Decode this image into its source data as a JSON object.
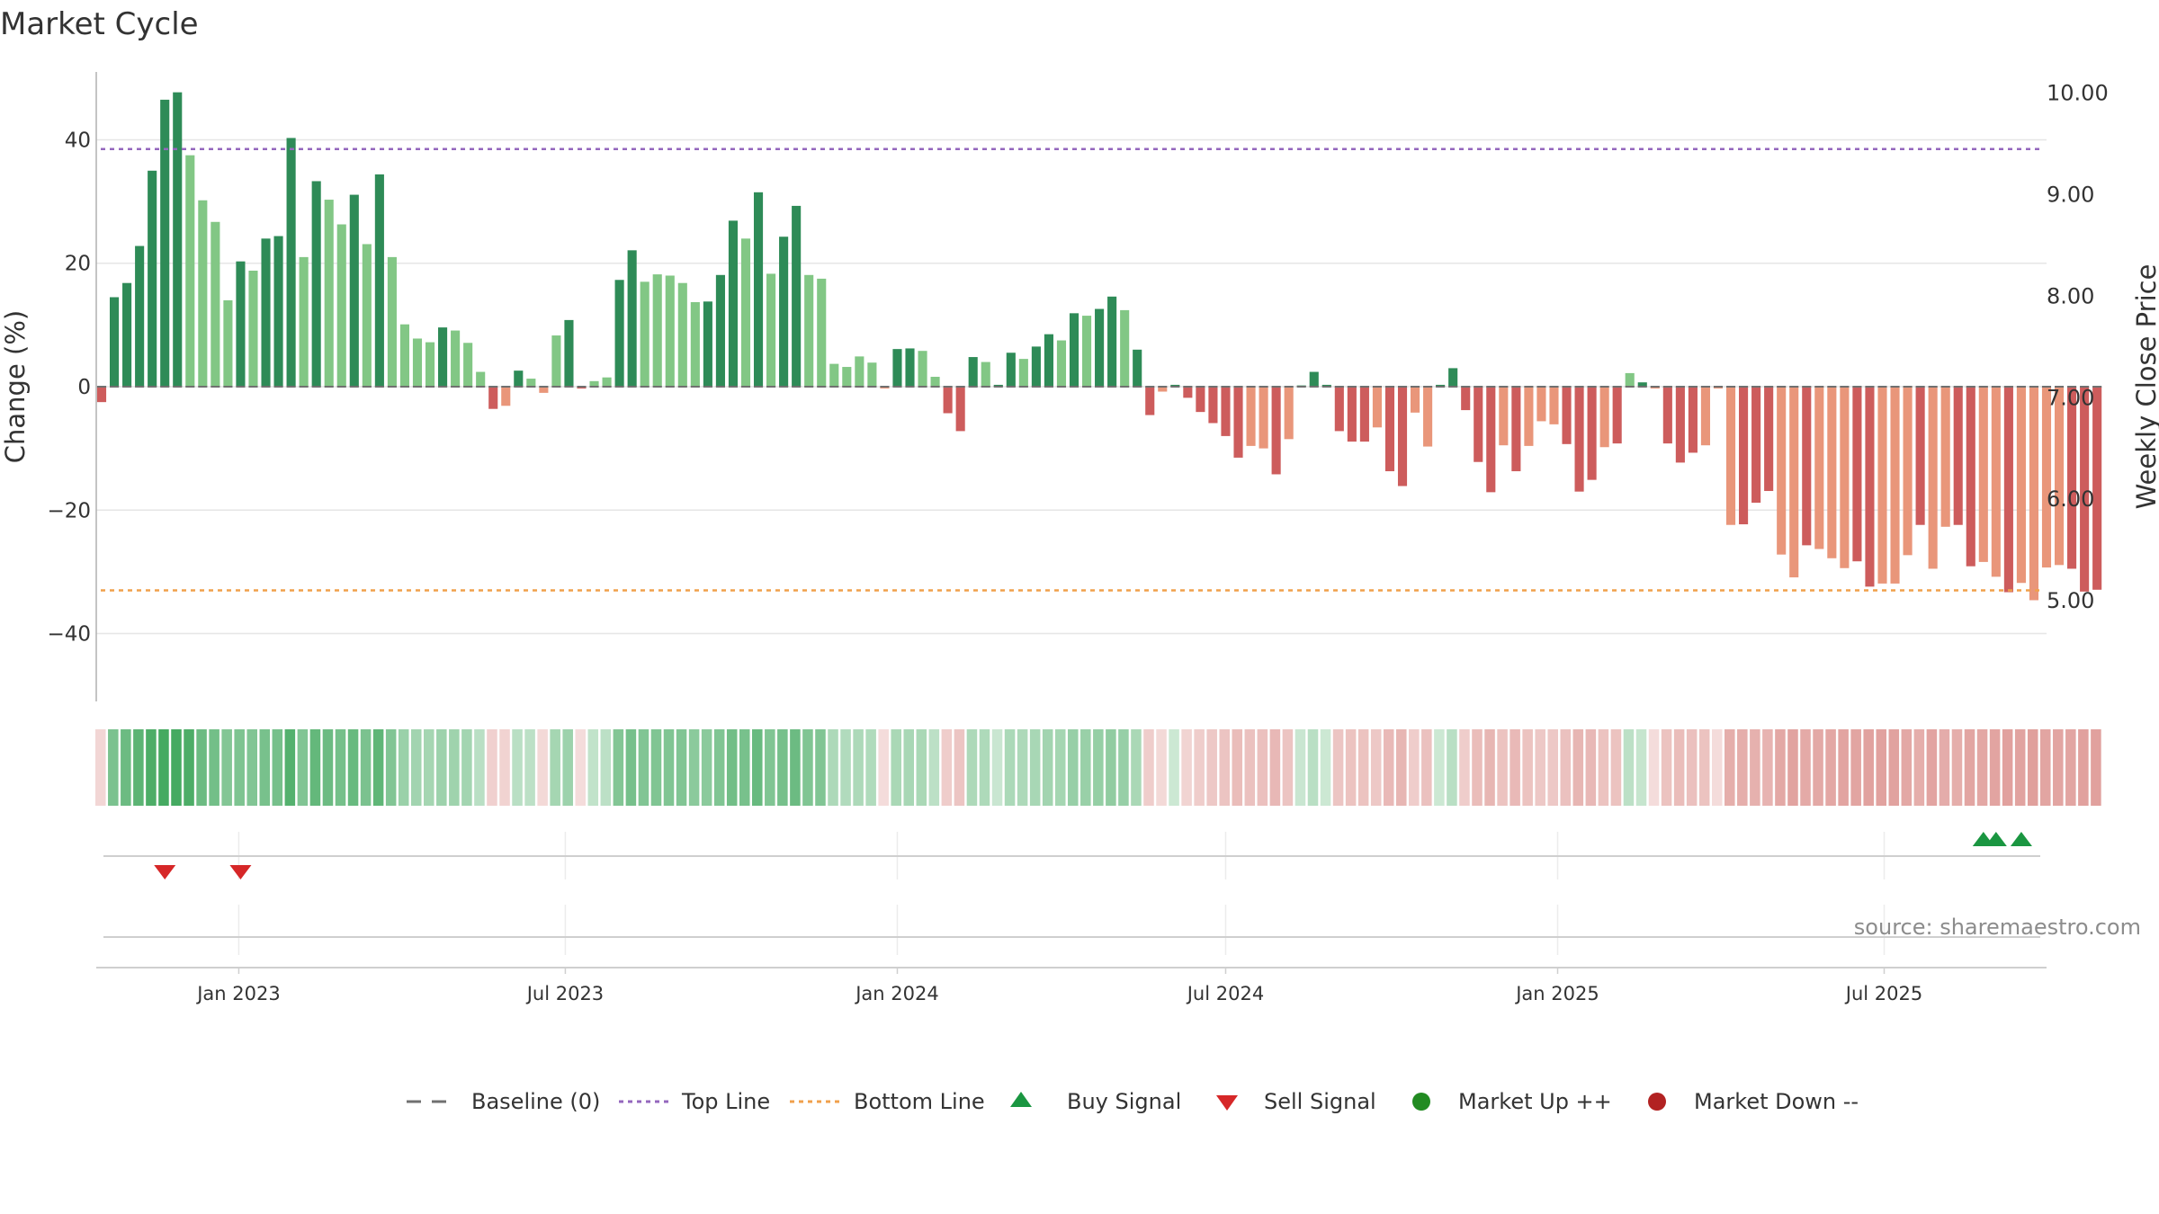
{
  "chart_data": {
    "type": "bar",
    "title": "Market Cycle",
    "ylabel": "Change (%)",
    "y2label": "Weekly Close Price",
    "ylim": [
      -51,
      51
    ],
    "y2lim": [
      4.0,
      10.2
    ],
    "yticks": [
      40,
      20,
      0,
      -20,
      -40
    ],
    "ytick_labels": [
      "40",
      "20",
      "0",
      "−20",
      "−40"
    ],
    "y2ticks": [
      10,
      9,
      8,
      7,
      6,
      5
    ],
    "y2tick_labels": [
      "10.00",
      "9.00",
      "8.00",
      "7.00",
      "6.00",
      "5.00"
    ],
    "xlim": [
      "2022-10-14",
      "2025-09-29"
    ],
    "xticks": [
      "2023-01-01",
      "2023-07-01",
      "2024-01-01",
      "2024-07-01",
      "2025-01-01",
      "2025-07-01"
    ],
    "xtick_labels": [
      "Jan 2023",
      "Jul 2023",
      "Jan 2024",
      "Jul 2024",
      "Jan 2025",
      "Jul 2025"
    ],
    "start_week": "2022-10-17",
    "top_line": 38.5,
    "bottom_line": -33,
    "grid": true,
    "values": [
      -2.5,
      14.5,
      16.8,
      22.8,
      35.0,
      46.5,
      47.7,
      37.5,
      30.2,
      26.7,
      14.0,
      20.3,
      18.8,
      24.0,
      24.4,
      40.3,
      21.0,
      33.3,
      30.3,
      26.3,
      31.1,
      23.1,
      34.4,
      21.0,
      10.1,
      7.8,
      7.2,
      9.6,
      9.1,
      7.1,
      2.4,
      -3.6,
      -3.1,
      2.6,
      1.3,
      -1.0,
      8.3,
      10.8,
      -0.3,
      0.9,
      1.5,
      17.3,
      22.1,
      17.0,
      18.2,
      18.0,
      16.8,
      13.7,
      13.8,
      18.1,
      26.9,
      24.0,
      31.5,
      18.3,
      24.3,
      29.3,
      18.1,
      17.5,
      3.7,
      3.2,
      4.9,
      3.9,
      -0.3,
      6.1,
      6.2,
      5.8,
      1.6,
      -4.3,
      -7.2,
      4.8,
      4.0,
      0.3,
      5.5,
      4.5,
      6.5,
      8.5,
      7.5,
      11.9,
      11.5,
      12.6,
      14.6,
      12.4,
      6.0,
      -4.6,
      -0.8,
      0.3,
      -1.8,
      -4.1,
      -5.9,
      -8.0,
      -11.5,
      -9.6,
      -10.0,
      -14.2,
      -8.5,
      0.2,
      2.4,
      0.3,
      -7.2,
      -8.9,
      -8.9,
      -6.6,
      -13.7,
      -16.1,
      -4.2,
      -9.7,
      0.3,
      3.0,
      -3.8,
      -12.2,
      -17.1,
      -9.5,
      -13.7,
      -9.6,
      -5.6,
      -6.1,
      -9.3,
      -17.0,
      -15.1,
      -9.8,
      -9.2,
      2.2,
      0.7,
      -0.3,
      -9.2,
      -12.3,
      -10.7,
      -9.5,
      -0.3,
      -22.4,
      -22.3,
      -18.8,
      -16.9,
      -27.2,
      -30.9,
      -25.7,
      -26.3,
      -27.8,
      -29.4,
      -28.3,
      -32.4,
      -31.9,
      -31.9,
      -27.3,
      -22.4,
      -29.5,
      -22.7,
      -22.4,
      -29.1,
      -28.4,
      -30.8,
      -33.3,
      -31.8,
      -34.6,
      -29.3,
      -28.9,
      -29.5,
      -33.2,
      -32.9
    ],
    "light_bar_weeks": [
      7,
      8,
      9,
      10,
      12,
      16,
      18,
      19,
      21,
      23,
      24,
      25,
      26,
      28,
      29,
      30,
      32,
      34,
      35,
      36,
      39,
      40,
      43,
      44,
      45,
      46,
      47,
      51,
      53,
      56,
      57,
      58,
      59,
      60,
      61,
      62,
      65,
      66,
      70,
      73,
      76,
      78,
      81,
      84,
      91,
      92,
      94,
      101,
      104,
      105,
      111,
      113,
      114,
      115,
      119,
      121,
      123,
      127,
      128,
      129,
      133,
      134,
      136,
      137,
      138,
      141,
      142,
      143,
      145,
      146,
      149,
      150,
      152,
      153,
      154,
      155,
      159,
      160,
      162,
      163,
      165,
      167
    ],
    "heat_strip": [
      -10,
      60,
      70,
      80,
      90,
      95,
      95,
      90,
      70,
      65,
      55,
      58,
      56,
      62,
      63,
      85,
      56,
      75,
      70,
      64,
      72,
      60,
      78,
      56,
      40,
      35,
      33,
      38,
      37,
      34,
      20,
      -15,
      -13,
      20,
      18,
      -8,
      33,
      38,
      -5,
      15,
      18,
      55,
      63,
      56,
      57,
      57,
      56,
      50,
      50,
      57,
      66,
      62,
      72,
      57,
      63,
      70,
      57,
      56,
      28,
      25,
      28,
      26,
      -5,
      30,
      31,
      30,
      18,
      -18,
      -25,
      28,
      27,
      10,
      29,
      28,
      31,
      35,
      33,
      42,
      41,
      43,
      46,
      42,
      30,
      -18,
      -8,
      8,
      -12,
      -18,
      -22,
      -26,
      -32,
      -28,
      -29,
      -36,
      -26,
      10,
      20,
      8,
      -25,
      -27,
      -27,
      -22,
      -35,
      -38,
      -18,
      -28,
      8,
      20,
      -18,
      -32,
      -38,
      -27,
      -35,
      -27,
      -22,
      -22,
      -28,
      -38,
      -36,
      -27,
      -27,
      18,
      12,
      -5,
      -27,
      -32,
      -29,
      -27,
      -5,
      -45,
      -45,
      -42,
      -40,
      -50,
      -54,
      -48,
      -49,
      -51,
      -53,
      -52,
      -55,
      -55,
      -55,
      -50,
      -45,
      -53,
      -46,
      -45,
      -52,
      -51,
      -53,
      -56,
      -54,
      -57,
      -52,
      -52,
      -52,
      -56,
      -56
    ],
    "sell_signals": [
      "2022-11-21",
      "2023-01-02"
    ],
    "buy_signals": [
      "2025-08-25",
      "2025-09-01",
      "2025-09-15"
    ],
    "source_note": "source: sharemaestro.com",
    "legend": {
      "baseline": "Baseline (0)",
      "top_line": "Top Line",
      "bottom_line": "Bottom Line",
      "buy": "Buy Signal",
      "sell": "Sell Signal",
      "up": "Market Up ++",
      "down": "Market Down --"
    },
    "colors": {
      "pos_dark": "#2e8b57",
      "pos_light": "#82c785",
      "neg_dark": "#cd5c5c",
      "neg_light": "#e9967a",
      "top_line": "#9467bd",
      "bottom_line": "#f0a04b",
      "buy": "#1a9641",
      "sell": "#d62728",
      "up": "#228b22",
      "down": "#b22222",
      "strip_pos": "#3da65a",
      "strip_neg": "#c8544e",
      "baseline": "#707070"
    }
  }
}
